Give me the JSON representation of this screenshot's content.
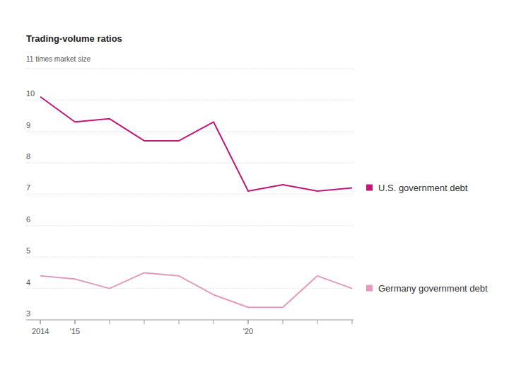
{
  "chart_data": {
    "type": "line",
    "title": "Trading-volume ratios",
    "x": [
      2014,
      2015,
      2016,
      2017,
      2018,
      2019,
      2020,
      2021,
      2022,
      2023
    ],
    "xlim": [
      2014,
      2023
    ],
    "xticks": [
      {
        "value": 2014,
        "label": "2014"
      },
      {
        "value": 2015,
        "label": "'15"
      },
      {
        "value": 2020,
        "label": "'20"
      }
    ],
    "ylim": [
      3,
      11
    ],
    "yticks": [
      3,
      4,
      5,
      6,
      7,
      8,
      9,
      10,
      {
        "value": 11,
        "label": "11 times market size"
      }
    ],
    "grid": true,
    "legend": "right",
    "series": [
      {
        "name": "U.S. government debt",
        "color": "#c2187a",
        "values": [
          10.1,
          9.3,
          9.4,
          8.7,
          8.7,
          9.3,
          7.1,
          7.3,
          7.1,
          7.2
        ]
      },
      {
        "name": "Germany government debt",
        "color": "#e39bbd",
        "values": [
          4.4,
          4.3,
          4.0,
          4.5,
          4.4,
          3.8,
          3.4,
          3.4,
          4.4,
          4.0
        ]
      }
    ]
  }
}
